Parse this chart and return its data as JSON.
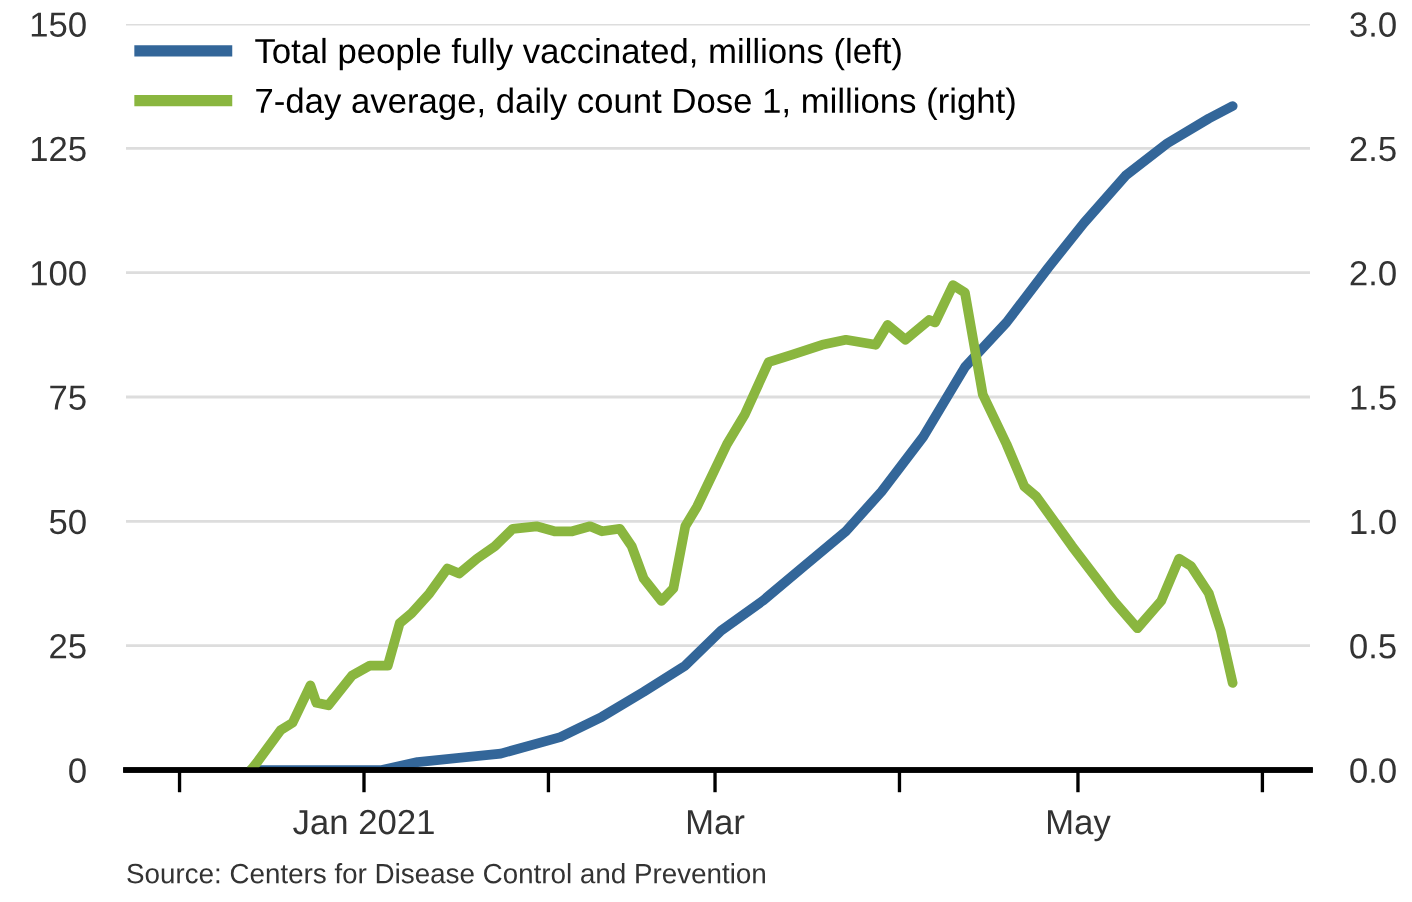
{
  "chart_data": {
    "type": "line",
    "x": [
      "2020-12-13",
      "2021-01-04",
      "2021-01-10",
      "2021-01-24",
      "2021-02-03",
      "2021-02-10",
      "2021-02-17",
      "2021-02-24",
      "2021-03-02",
      "2021-03-09",
      "2021-03-16",
      "2021-03-23",
      "2021-03-29",
      "2021-04-05",
      "2021-04-12",
      "2021-04-19",
      "2021-04-26",
      "2021-05-02",
      "2021-05-09",
      "2021-05-16",
      "2021-05-23",
      "2021-05-27"
    ],
    "series": [
      {
        "name": "Total people fully vaccinated, millions (left)",
        "color": "#336699",
        "axis": "y",
        "values": [
          0,
          0,
          1.6,
          3.3,
          6.6,
          10.7,
          15.7,
          21,
          28,
          34,
          41,
          48,
          56,
          67,
          81,
          90,
          101,
          110,
          119.5,
          126,
          131,
          133.5
        ]
      },
      {
        "name": "7-day average, daily count Dose 1, millions (right)",
        "color": "#8ab63f",
        "axis": "y2",
        "x": [
          "2020-12-13",
          "2020-12-14",
          "2020-12-18",
          "2020-12-20",
          "2020-12-23",
          "2020-12-24",
          "2020-12-26",
          "2020-12-30",
          "2021-01-02",
          "2021-01-05",
          "2021-01-07",
          "2021-01-09",
          "2021-01-12",
          "2021-01-15",
          "2021-01-17",
          "2021-01-20",
          "2021-01-23",
          "2021-01-26",
          "2021-01-30",
          "2021-02-02",
          "2021-02-05",
          "2021-02-08",
          "2021-02-10",
          "2021-02-13",
          "2021-02-15",
          "2021-02-17",
          "2021-02-20",
          "2021-02-22",
          "2021-02-24",
          "2021-02-26",
          "2021-03-03",
          "2021-03-06",
          "2021-03-10",
          "2021-03-14",
          "2021-03-19",
          "2021-03-23",
          "2021-03-28",
          "2021-03-30",
          "2021-04-02",
          "2021-04-06",
          "2021-04-07",
          "2021-04-10",
          "2021-04-12",
          "2021-04-15",
          "2021-04-19",
          "2021-04-22",
          "2021-04-24",
          "2021-04-30",
          "2021-05-07",
          "2021-05-11",
          "2021-05-15",
          "2021-05-18",
          "2021-05-20",
          "2021-05-23",
          "2021-05-25",
          "2021-05-27"
        ],
        "values": [
          0,
          0.03,
          0.16,
          0.19,
          0.34,
          0.27,
          0.26,
          0.38,
          0.42,
          0.42,
          0.59,
          0.63,
          0.71,
          0.81,
          0.79,
          0.85,
          0.9,
          0.97,
          0.98,
          0.96,
          0.96,
          0.98,
          0.96,
          0.97,
          0.9,
          0.77,
          0.68,
          0.73,
          0.98,
          1.06,
          1.31,
          1.43,
          1.64,
          1.67,
          1.71,
          1.73,
          1.71,
          1.79,
          1.73,
          1.81,
          1.8,
          1.95,
          1.92,
          1.51,
          1.31,
          1.14,
          1.1,
          0.9,
          0.68,
          0.57,
          0.68,
          0.85,
          0.82,
          0.71,
          0.56,
          0.35
        ]
      }
    ],
    "xlim": [
      "2020-11-22",
      "2021-06-09"
    ],
    "xticks": [
      {
        "value": "2020-12-01",
        "label": null
      },
      {
        "value": "2021-01-01",
        "label": "Jan 2021"
      },
      {
        "value": "2021-02-01",
        "label": null
      },
      {
        "value": "2021-03-01",
        "label": "Mar"
      },
      {
        "value": "2021-04-01",
        "label": null
      },
      {
        "value": "2021-05-01",
        "label": "May"
      },
      {
        "value": "2021-06-01",
        "label": null
      }
    ],
    "ylim": [
      0,
      150
    ],
    "yticks": [
      0,
      25,
      50,
      75,
      100,
      125,
      150
    ],
    "y2lim": [
      0,
      3.0
    ],
    "y2ticks": [
      {
        "value": 0,
        "label": "0.0"
      },
      {
        "value": 0.5,
        "label": "0.5"
      },
      {
        "value": 1,
        "label": "1.0"
      },
      {
        "value": 1.5,
        "label": "1.5"
      },
      {
        "value": 2,
        "label": "2.0"
      },
      {
        "value": 2.5,
        "label": "2.5"
      },
      {
        "value": 3,
        "label": "3.0"
      }
    ],
    "grid": "y",
    "legend": "top left",
    "line_style": "solid",
    "marker": "none",
    "annotations": [
      "Source: Centers for Disease Control and Prevention"
    ]
  }
}
